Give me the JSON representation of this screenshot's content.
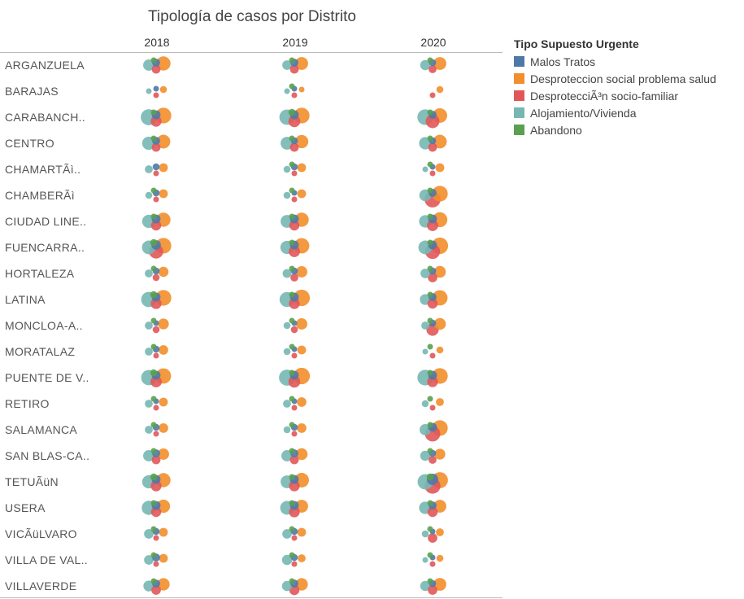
{
  "title": "Tipología de casos por Distrito",
  "columns": [
    "2018",
    "2019",
    "2020"
  ],
  "legend": {
    "title": "Tipo Supuesto Urgente",
    "items": [
      {
        "label": "Malos Tratos",
        "color": "#4e79a7"
      },
      {
        "label": "Desproteccion social problema salud",
        "color": "#f28e2b"
      },
      {
        "label": "DesprotecciÃ³n socio-familiar",
        "color": "#e15759"
      },
      {
        "label": "Alojamiento/Vivienda",
        "color": "#76b7b2"
      },
      {
        "label": "Abandono",
        "color": "#59a14f"
      }
    ]
  },
  "chart_data": {
    "type": "scatter",
    "encoding": "bubble size = number of cases; column = year; row = district",
    "categories": [
      "ARGANZUELA",
      "BARAJAS",
      "CARABANCH..",
      "CENTRO",
      "CHAMARTÃì..",
      "CHAMBERÃì",
      "CIUDAD LINE..",
      "FUENCARRA..",
      "HORTALEZA",
      "LATINA",
      "MONCLOA-A..",
      "MORATALAZ",
      "PUENTE DE V..",
      "RETIRO",
      "SALAMANCA",
      "SAN BLAS-CA..",
      "TETUÃüN",
      "USERA",
      "VICÃüLVARO",
      "VILLA DE VAL..",
      "VILLAVERDE"
    ],
    "x": [
      "2018",
      "2019",
      "2020"
    ],
    "series": [
      {
        "name": "Malos Tratos",
        "color": "#4e79a7",
        "values": [
          [
            3,
            3,
            2
          ],
          [
            1,
            1,
            0
          ],
          [
            4,
            4,
            3
          ],
          [
            3,
            2,
            2
          ],
          [
            2,
            2,
            1
          ],
          [
            2,
            1,
            3
          ],
          [
            4,
            4,
            4
          ],
          [
            5,
            4,
            4
          ],
          [
            2,
            2,
            2
          ],
          [
            4,
            4,
            3
          ],
          [
            1,
            1,
            2
          ],
          [
            2,
            1,
            0
          ],
          [
            4,
            4,
            4
          ],
          [
            1,
            1,
            0
          ],
          [
            2,
            2,
            4
          ],
          [
            3,
            3,
            2
          ],
          [
            4,
            4,
            8
          ],
          [
            4,
            4,
            3
          ],
          [
            2,
            2,
            1
          ],
          [
            3,
            2,
            1
          ],
          [
            3,
            3,
            2
          ]
        ]
      },
      {
        "name": "Desproteccion social problema salud",
        "color": "#f28e2b",
        "values": [
          [
            14,
            11,
            11
          ],
          [
            2,
            1,
            2
          ],
          [
            18,
            18,
            15
          ],
          [
            13,
            12,
            13
          ],
          [
            4,
            4,
            4
          ],
          [
            4,
            4,
            18
          ],
          [
            14,
            14,
            16
          ],
          [
            18,
            17,
            20
          ],
          [
            6,
            8,
            9
          ],
          [
            18,
            20,
            17
          ],
          [
            7,
            8,
            9
          ],
          [
            5,
            4,
            2
          ],
          [
            17,
            20,
            18
          ],
          [
            4,
            5,
            3
          ],
          [
            5,
            5,
            18
          ],
          [
            8,
            9,
            7
          ],
          [
            14,
            15,
            19
          ],
          [
            12,
            11,
            11
          ],
          [
            4,
            4,
            3
          ],
          [
            4,
            3,
            2
          ],
          [
            10,
            10,
            11
          ]
        ]
      },
      {
        "name": "DesprotecciÃ³n socio-familiar",
        "color": "#e15759",
        "values": [
          [
            4,
            4,
            3
          ],
          [
            1,
            1,
            1
          ],
          [
            7,
            9,
            13
          ],
          [
            4,
            4,
            4
          ],
          [
            1,
            1,
            1
          ],
          [
            1,
            1,
            19
          ],
          [
            6,
            6,
            8
          ],
          [
            14,
            8,
            16
          ],
          [
            2,
            3,
            5
          ],
          [
            7,
            7,
            6
          ],
          [
            2,
            2,
            10
          ],
          [
            1,
            1,
            1
          ],
          [
            8,
            9,
            7
          ],
          [
            1,
            1,
            1
          ],
          [
            1,
            1,
            17
          ],
          [
            4,
            4,
            3
          ],
          [
            7,
            7,
            18
          ],
          [
            6,
            7,
            6
          ],
          [
            1,
            1,
            5
          ],
          [
            1,
            1,
            1
          ],
          [
            5,
            6,
            5
          ]
        ]
      },
      {
        "name": "Alojamiento/Vivienda",
        "color": "#76b7b2",
        "values": [
          [
            8,
            5,
            6
          ],
          [
            1,
            1,
            0
          ],
          [
            19,
            17,
            18
          ],
          [
            12,
            11,
            10
          ],
          [
            3,
            2,
            1
          ],
          [
            2,
            2,
            9
          ],
          [
            12,
            11,
            10
          ],
          [
            13,
            12,
            13
          ],
          [
            3,
            4,
            5
          ],
          [
            17,
            16,
            7
          ],
          [
            3,
            2,
            3
          ],
          [
            3,
            2,
            1
          ],
          [
            17,
            19,
            18
          ],
          [
            3,
            3,
            2
          ],
          [
            3,
            2,
            8
          ],
          [
            8,
            8,
            6
          ],
          [
            12,
            11,
            17
          ],
          [
            14,
            13,
            10
          ],
          [
            5,
            5,
            2
          ],
          [
            5,
            6,
            1
          ],
          [
            7,
            6,
            6
          ]
        ]
      },
      {
        "name": "Abandono",
        "color": "#59a14f",
        "values": [
          [
            1,
            1,
            1
          ],
          [
            0,
            1,
            0
          ],
          [
            1,
            2,
            1
          ],
          [
            1,
            1,
            1
          ],
          [
            0,
            1,
            1
          ],
          [
            1,
            1,
            1
          ],
          [
            1,
            1,
            1
          ],
          [
            2,
            1,
            1
          ],
          [
            1,
            1,
            1
          ],
          [
            2,
            1,
            1
          ],
          [
            1,
            1,
            1
          ],
          [
            1,
            1,
            1
          ],
          [
            2,
            1,
            1
          ],
          [
            1,
            1,
            1
          ],
          [
            1,
            1,
            1
          ],
          [
            1,
            1,
            1
          ],
          [
            2,
            1,
            2
          ],
          [
            1,
            1,
            1
          ],
          [
            1,
            1,
            1
          ],
          [
            1,
            1,
            1
          ],
          [
            1,
            1,
            1
          ]
        ]
      }
    ],
    "xlabel": "",
    "ylabel": "",
    "grid": false,
    "legend_position": "right"
  }
}
